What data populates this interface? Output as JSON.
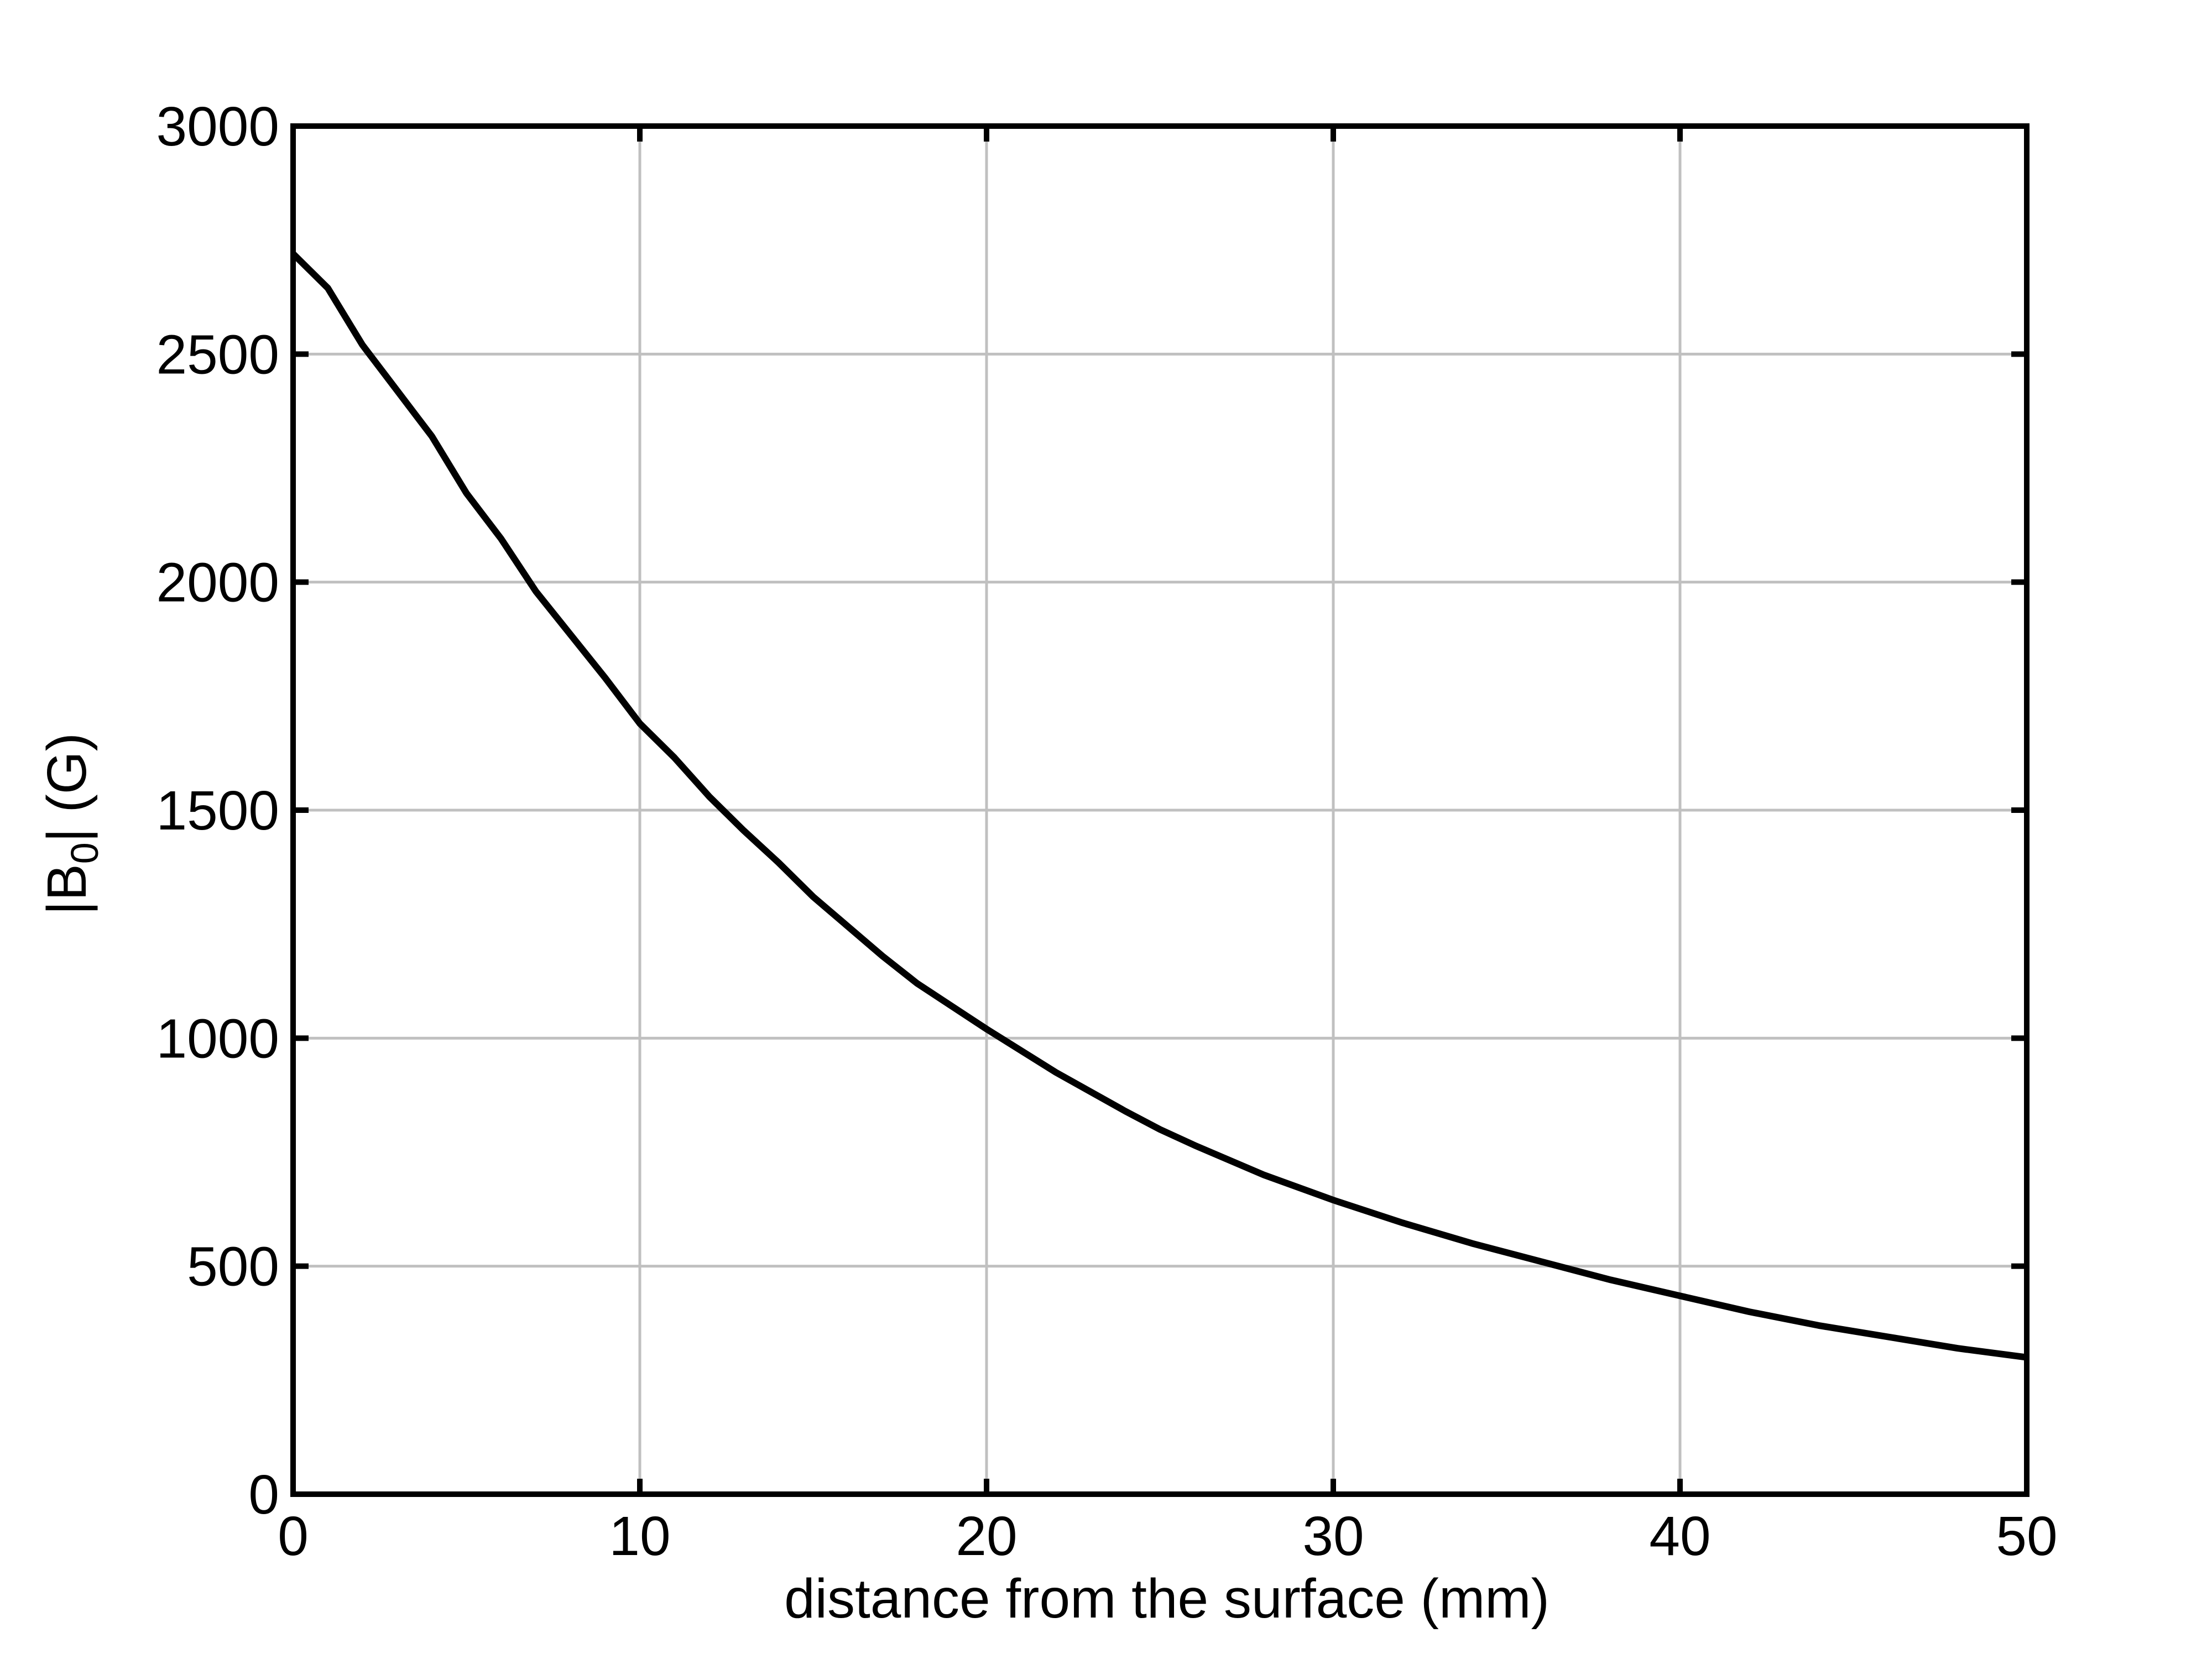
{
  "chart_data": {
    "type": "line",
    "title": "",
    "xlabel": "distance from the surface (mm)",
    "ylabel": {
      "prefix": "|B",
      "subscript": "0",
      "suffix": "| (G)"
    },
    "xlim": [
      0,
      50
    ],
    "ylim": [
      0,
      3000
    ],
    "xticks": [
      "0",
      "10",
      "20",
      "30",
      "40",
      "50"
    ],
    "yticks": [
      "0",
      "500",
      "1000",
      "1500",
      "2000",
      "2500",
      "3000"
    ],
    "grid": true,
    "legend": "none",
    "colors": {
      "line": "#000000",
      "grid": "#c0c0c0",
      "axes": "#000000"
    },
    "series": [
      {
        "x": [
          0,
          1,
          2,
          3,
          4,
          5,
          6,
          7,
          8,
          9,
          10,
          11,
          12,
          13,
          14,
          15,
          16,
          17,
          18,
          19,
          20,
          22,
          24,
          25,
          26,
          28,
          30,
          32,
          34,
          36,
          38,
          40,
          42,
          44,
          46,
          48,
          50
        ],
        "y": [
          2720,
          2645,
          2520,
          2420,
          2320,
          2195,
          2095,
          1980,
          1885,
          1790,
          1690,
          1615,
          1530,
          1455,
          1385,
          1310,
          1245,
          1180,
          1120,
          1070,
          1020,
          925,
          840,
          800,
          765,
          700,
          645,
          595,
          550,
          510,
          470,
          435,
          400,
          370,
          345,
          320,
          300
        ]
      }
    ]
  }
}
